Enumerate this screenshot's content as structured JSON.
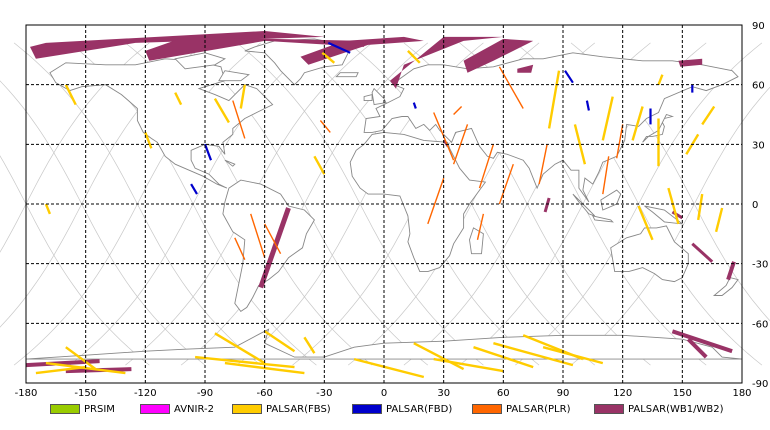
{
  "map": {
    "x_ticks": [
      "-180",
      "-150",
      "-120",
      "-90",
      "-60",
      "-30",
      "0",
      "30",
      "60",
      "90",
      "120",
      "150",
      "180"
    ],
    "y_ticks": [
      "90",
      "60",
      "30",
      "0",
      "-30",
      "-60",
      "-90"
    ],
    "lon_range": [
      -180,
      180
    ],
    "lat_range": [
      -90,
      90
    ],
    "grid": true,
    "colors": {
      "land": "#888888",
      "orbit": "#c8c8c8",
      "grid": "#000000"
    }
  },
  "legend": {
    "items": [
      {
        "label": "PRSIM",
        "color": "#99cc00"
      },
      {
        "label": "AVNIR-2",
        "color": "#ff00ff"
      },
      {
        "label": "PALSAR(FBS)",
        "color": "#ffcc00"
      },
      {
        "label": "PALSAR(FBD)",
        "color": "#0000cc"
      },
      {
        "label": "PALSAR(PLR)",
        "color": "#ff6600"
      },
      {
        "label": "PALSAR(WB1/WB2)",
        "color": "#993366"
      }
    ]
  }
}
